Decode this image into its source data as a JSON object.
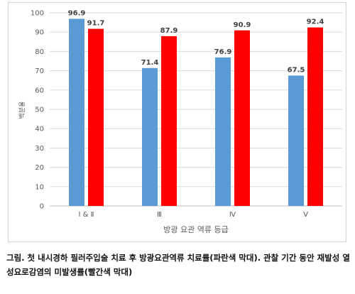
{
  "chart_data": {
    "type": "bar",
    "categories": [
      "Ⅰ & Ⅱ",
      "Ⅲ",
      "Ⅳ",
      "Ⅴ"
    ],
    "series": [
      {
        "color": "#5B9BD5",
        "values": [
          96.9,
          71.4,
          76.9,
          67.5
        ]
      },
      {
        "color": "#FF0000",
        "values": [
          91.7,
          87.9,
          90.9,
          92.4
        ]
      }
    ],
    "xlabel": "방광 요관 역류 등급",
    "ylabel": "백분율",
    "ylim": [
      0,
      100
    ],
    "yticks": [
      0,
      10,
      20,
      30,
      40,
      50,
      60,
      70,
      80,
      90,
      100
    ],
    "grid": true,
    "legend": "none",
    "data_labels": true
  },
  "caption": "그림. 첫 내시경하 필러주입술 치료 후 방광요관역류 치료률(파란색 막대). 관찰 기간 동안 재발성 열성요로감염의 미발생률(빨간색 막대)"
}
